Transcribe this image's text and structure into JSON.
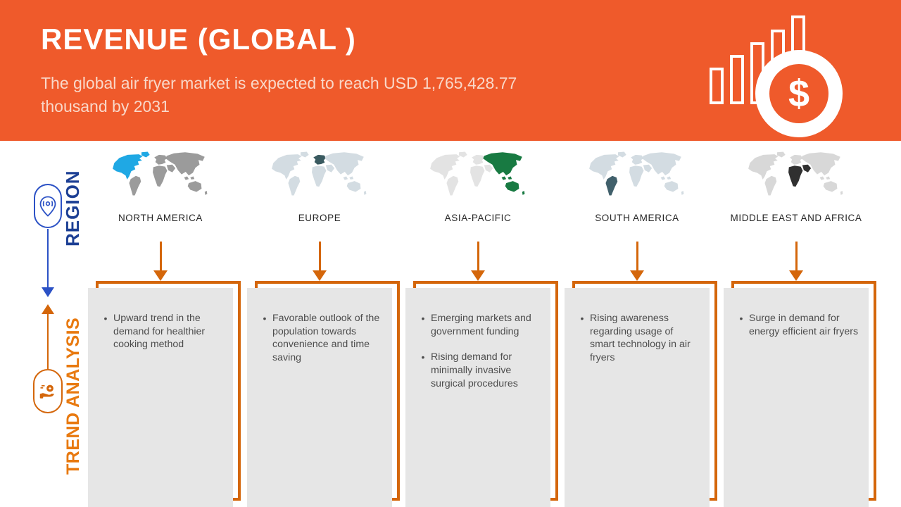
{
  "header": {
    "title": "REVENUE (GLOBAL )",
    "subtitle_line1": "The global air fryer market is expected to reach USD 1,765,428.77",
    "subtitle_line2": "thousand by 2031",
    "dollar_sign": "$"
  },
  "sidebar": {
    "region_label": "REGION",
    "trend_label": "TREND ANALYSIS"
  },
  "colors": {
    "header_orange": "#EF5A2B",
    "accent_orange": "#D4660A",
    "accent_blue": "#2B51C5",
    "region_navy": "#1C3F94",
    "trend_orange": "#E8790F",
    "card_gray": "#E6E6E6",
    "bullet_text": "#4D4D4D",
    "subtitle": "#F9D8C9",
    "label_dark": "#262626"
  },
  "columns": [
    {
      "region": "NORTH AMERICA",
      "map": {
        "base": "#9B9B9B",
        "highlight": "#1FA8E4",
        "regions": [
          "north-america",
          "greenland"
        ]
      },
      "bullets": [
        "Upward trend in the demand for healthier cooking method"
      ]
    },
    {
      "region": "EUROPE",
      "map": {
        "base": "#D3DCE2",
        "highlight": "#3A5A60",
        "regions": [
          "europe"
        ]
      },
      "bullets": [
        "Favorable outlook of the population towards convenience and time saving"
      ]
    },
    {
      "region": "ASIA-PACIFIC",
      "map": {
        "base": "#E3E3E3",
        "highlight": "#187A42",
        "regions": [
          "asia",
          "islands",
          "australia",
          "new-zealand"
        ]
      },
      "bullets": [
        "Emerging markets and government funding",
        "Rising demand for minimally invasive surgical procedures"
      ]
    },
    {
      "region": "SOUTH AMERICA",
      "map": {
        "base": "#D3DCE2",
        "highlight": "#41606B",
        "regions": [
          "south-america"
        ]
      },
      "bullets": [
        "Rising awareness regarding usage of smart technology in air fryers"
      ]
    },
    {
      "region": "MIDDLE EAST AND AFRICA",
      "map": {
        "base": "#D8D8D8",
        "highlight": "#303030",
        "regions": [
          "africa",
          "middle-east"
        ]
      },
      "bullets": [
        "Surge in demand for energy efficient air fryers"
      ]
    }
  ]
}
